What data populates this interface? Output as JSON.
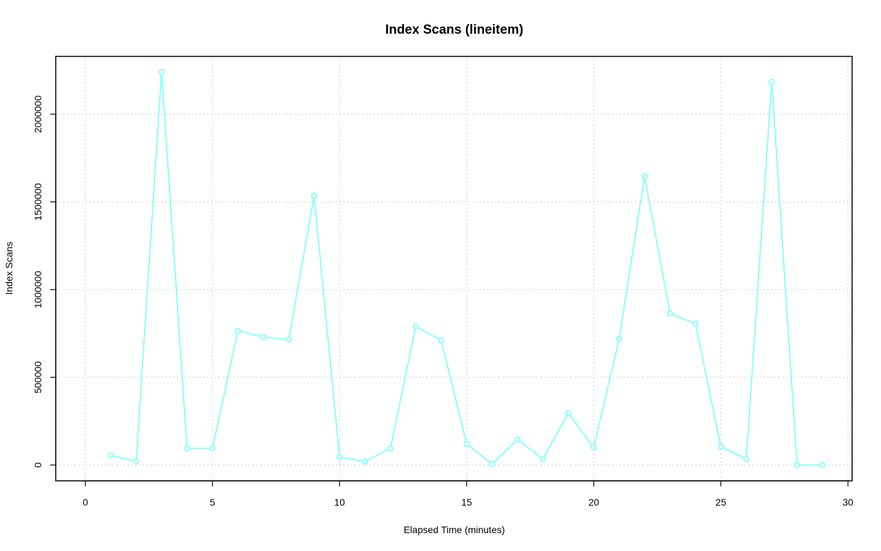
{
  "chart_data": {
    "type": "line",
    "title": "Index Scans (lineitem)",
    "xlabel": "Elapsed Time (minutes)",
    "ylabel": "Index Scans",
    "xlim": [
      0,
      30
    ],
    "ylim": [
      0,
      2250000
    ],
    "x_ticks": [
      0,
      5,
      10,
      15,
      20,
      25,
      30
    ],
    "y_ticks": [
      0,
      500000,
      1000000,
      1500000,
      2000000
    ],
    "x_tick_labels": [
      "0",
      "5",
      "10",
      "15",
      "20",
      "25",
      "30"
    ],
    "y_tick_labels": [
      "0",
      "500000",
      "1000000",
      "1500000",
      "2000000"
    ],
    "grid": true,
    "color": "#7fffff",
    "series": [
      {
        "x": [
          1,
          2,
          3,
          4,
          5,
          6,
          7,
          8,
          9,
          10,
          11,
          12,
          13,
          14,
          15,
          16,
          17,
          18,
          19,
          20,
          21,
          22,
          23,
          24,
          25,
          26,
          27,
          28,
          29
        ],
        "values": [
          55000,
          20000,
          2240000,
          95000,
          95000,
          765000,
          730000,
          715000,
          1535000,
          45000,
          20000,
          95000,
          790000,
          710000,
          120000,
          5000,
          145000,
          35000,
          295000,
          100000,
          720000,
          1645000,
          865000,
          805000,
          105000,
          35000,
          2185000,
          0,
          0
        ]
      }
    ]
  }
}
